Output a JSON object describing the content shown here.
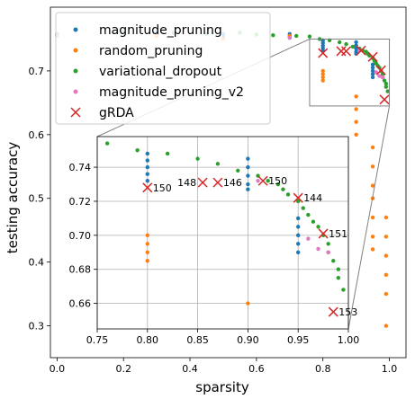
{
  "chart_data": {
    "type": "scatter",
    "title": "",
    "xlabel": "sparsity",
    "ylabel": "testing accuracy",
    "xlim": [
      -0.02,
      1.05
    ],
    "ylim": [
      0.25,
      0.8
    ],
    "xticks": [
      "0.0",
      "0.2",
      "0.4",
      "0.6",
      "0.8",
      "1.0"
    ],
    "xtick_values": [
      0.0,
      0.2,
      0.4,
      0.6,
      0.8,
      1.0
    ],
    "yticks": [
      "0.3",
      "0.4",
      "0.5",
      "0.6",
      "0.7"
    ],
    "ytick_values": [
      0.3,
      0.4,
      0.5,
      0.6,
      0.7
    ],
    "grid": false,
    "legend_position": "top-left",
    "series": [
      {
        "name": "magnitude_pruning",
        "color": "#1f77b4",
        "marker": "dot",
        "points": [
          [
            0.0,
            0.758
          ],
          [
            0.0,
            0.755
          ],
          [
            0.3,
            0.758
          ],
          [
            0.3,
            0.76
          ],
          [
            0.5,
            0.755
          ],
          [
            0.5,
            0.758
          ],
          [
            0.7,
            0.758
          ],
          [
            0.7,
            0.755
          ],
          [
            0.7,
            0.752
          ],
          [
            0.8,
            0.748
          ],
          [
            0.8,
            0.744
          ],
          [
            0.8,
            0.74
          ],
          [
            0.8,
            0.736
          ],
          [
            0.8,
            0.732
          ],
          [
            0.9,
            0.745
          ],
          [
            0.9,
            0.74
          ],
          [
            0.9,
            0.735
          ],
          [
            0.9,
            0.73
          ],
          [
            0.9,
            0.727
          ],
          [
            0.95,
            0.705
          ],
          [
            0.95,
            0.7
          ],
          [
            0.95,
            0.695
          ],
          [
            0.95,
            0.69
          ],
          [
            0.95,
            0.71
          ]
        ]
      },
      {
        "name": "random_pruning",
        "color": "#ff7f0e",
        "marker": "dot",
        "points": [
          [
            0.0,
            0.755
          ],
          [
            0.3,
            0.755
          ],
          [
            0.5,
            0.75
          ],
          [
            0.7,
            0.755
          ],
          [
            0.8,
            0.7
          ],
          [
            0.8,
            0.695
          ],
          [
            0.8,
            0.69
          ],
          [
            0.8,
            0.685
          ],
          [
            0.9,
            0.66
          ],
          [
            0.9,
            0.64
          ],
          [
            0.9,
            0.62
          ],
          [
            0.9,
            0.6
          ],
          [
            0.95,
            0.58
          ],
          [
            0.95,
            0.55
          ],
          [
            0.95,
            0.52
          ],
          [
            0.95,
            0.5
          ],
          [
            0.95,
            0.47
          ],
          [
            0.95,
            0.44
          ],
          [
            0.95,
            0.42
          ],
          [
            0.99,
            0.47
          ],
          [
            0.99,
            0.44
          ],
          [
            0.99,
            0.41
          ],
          [
            0.99,
            0.38
          ],
          [
            0.99,
            0.35
          ],
          [
            0.99,
            0.3
          ]
        ]
      },
      {
        "name": "variational_dropout",
        "color": "#2ca02c",
        "marker": "dot",
        "points": [
          [
            0.2,
            0.762
          ],
          [
            0.35,
            0.76
          ],
          [
            0.45,
            0.758
          ],
          [
            0.55,
            0.76
          ],
          [
            0.6,
            0.757
          ],
          [
            0.65,
            0.756
          ],
          [
            0.72,
            0.755
          ],
          [
            0.76,
            0.754
          ],
          [
            0.79,
            0.75
          ],
          [
            0.82,
            0.748
          ],
          [
            0.85,
            0.745
          ],
          [
            0.87,
            0.742
          ],
          [
            0.89,
            0.738
          ],
          [
            0.91,
            0.735
          ],
          [
            0.92,
            0.732
          ],
          [
            0.93,
            0.73
          ],
          [
            0.935,
            0.727
          ],
          [
            0.94,
            0.724
          ],
          [
            0.95,
            0.72
          ],
          [
            0.955,
            0.716
          ],
          [
            0.96,
            0.712
          ],
          [
            0.965,
            0.708
          ],
          [
            0.97,
            0.705
          ],
          [
            0.975,
            0.7
          ],
          [
            0.98,
            0.695
          ],
          [
            0.98,
            0.69
          ],
          [
            0.985,
            0.685
          ],
          [
            0.99,
            0.68
          ],
          [
            0.99,
            0.675
          ],
          [
            0.995,
            0.668
          ]
        ]
      },
      {
        "name": "magnitude_pruning_v2",
        "color": "#e377c2",
        "marker": "dot",
        "points": [
          [
            0.7,
            0.752
          ],
          [
            0.91,
            0.732
          ],
          [
            0.96,
            0.698
          ],
          [
            0.97,
            0.692
          ],
          [
            0.98,
            0.69
          ]
        ]
      },
      {
        "name": "gRDA",
        "color": "#d62728",
        "marker": "x",
        "points": [
          [
            0.8,
            0.728
          ],
          [
            0.855,
            0.731
          ],
          [
            0.87,
            0.731
          ],
          [
            0.915,
            0.732
          ],
          [
            0.95,
            0.722
          ],
          [
            0.975,
            0.701
          ],
          [
            0.985,
            0.655
          ]
        ],
        "labels": [
          "150",
          "148",
          "146",
          "150",
          "144",
          "151",
          "153"
        ]
      }
    ],
    "inset": {
      "xlim": [
        0.75,
        1.0
      ],
      "ylim": [
        0.645,
        0.758
      ],
      "xticks": [
        "0.75",
        "0.80",
        "0.85",
        "0.90",
        "0.95",
        "1.00"
      ],
      "xtick_values": [
        0.75,
        0.8,
        0.85,
        0.9,
        0.95,
        1.0
      ],
      "yticks": [
        "0.66",
        "0.68",
        "0.70",
        "0.72",
        "0.74"
      ],
      "ytick_values": [
        0.66,
        0.68,
        0.7,
        0.72,
        0.74
      ],
      "grid": true,
      "zoom_box_x": [
        0.76,
        1.0
      ],
      "zoom_box_y": [
        0.645,
        0.75
      ]
    }
  }
}
